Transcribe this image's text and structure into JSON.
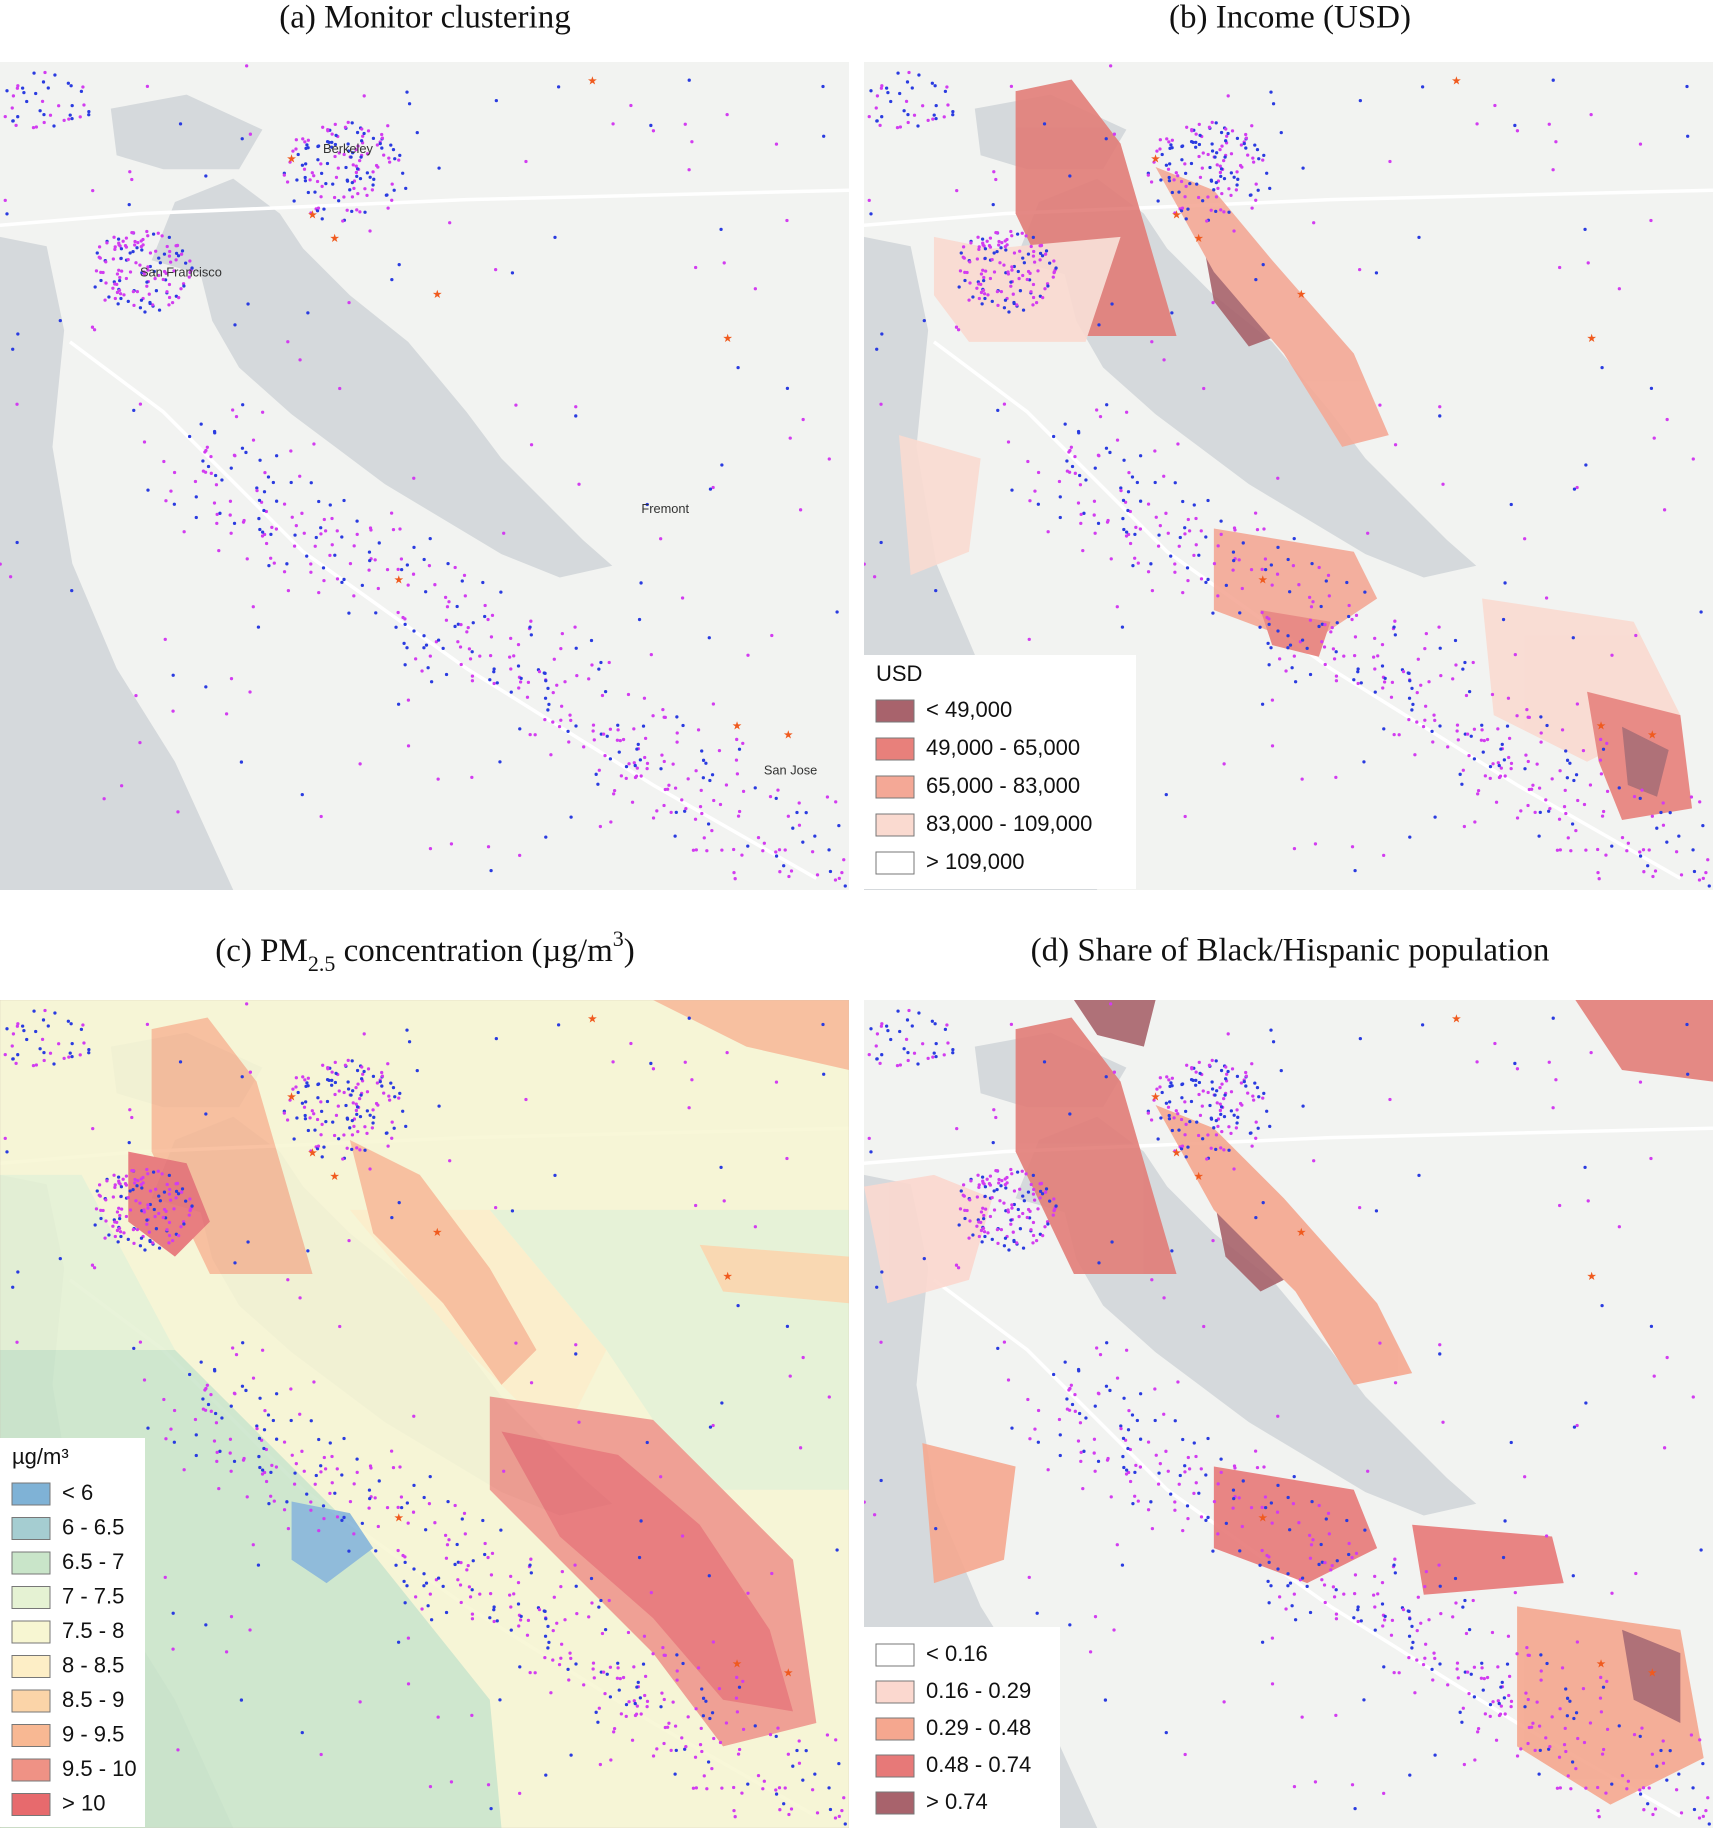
{
  "panels": [
    {
      "title": "(a) Monitor clustering",
      "place_labels": [
        "Berkeley",
        "San Francisco",
        "Fremont",
        "San Jose"
      ]
    },
    {
      "title": "(b) Income (USD)",
      "legend": {
        "title": "USD",
        "items": [
          {
            "label": "< 49,000",
            "color": "#a8636c"
          },
          {
            "label": "49,000 - 65,000",
            "color": "#e8807b"
          },
          {
            "label": "65,000 - 83,000",
            "color": "#f4a896"
          },
          {
            "label": "83,000 - 109,000",
            "color": "#fadad0"
          },
          {
            "label": "> 109,000",
            "color": "#ffffff"
          }
        ]
      }
    },
    {
      "title_parts": [
        {
          "text": "(c) PM"
        },
        {
          "text": "2.5",
          "shift": "sub"
        },
        {
          "text": " concentration (µg/m"
        },
        {
          "text": "3",
          "shift": "super"
        },
        {
          "text": ")"
        }
      ],
      "legend": {
        "title": "µg/m³",
        "items": [
          {
            "label": "< 6",
            "color": "#7fb2d6"
          },
          {
            "label": "6 - 6.5",
            "color": "#a5cdd1"
          },
          {
            "label": "6.5 - 7",
            "color": "#c9e5c9"
          },
          {
            "label": "7 - 7.5",
            "color": "#e5f2d3"
          },
          {
            "label": "7.5 - 8",
            "color": "#f7f6d2"
          },
          {
            "label": "8 - 8.5",
            "color": "#fdeec6"
          },
          {
            "label": "8.5 - 9",
            "color": "#fbd4a8"
          },
          {
            "label": "9 - 9.5",
            "color": "#f8b893"
          },
          {
            "label": "9.5 - 10",
            "color": "#ef9285"
          },
          {
            "label": "> 10",
            "color": "#e76a6d"
          }
        ]
      }
    },
    {
      "title": "(d) Share of Black/Hispanic population",
      "legend": {
        "items": [
          {
            "label": "< 0.16",
            "color": "#ffffff"
          },
          {
            "label": "0.16 - 0.29",
            "color": "#fbd8cf"
          },
          {
            "label": "0.29 - 0.48",
            "color": "#f5a78f"
          },
          {
            "label": "0.48 - 0.74",
            "color": "#e77978"
          },
          {
            "label": "> 0.74",
            "color": "#a8636c"
          }
        ]
      }
    }
  ]
}
